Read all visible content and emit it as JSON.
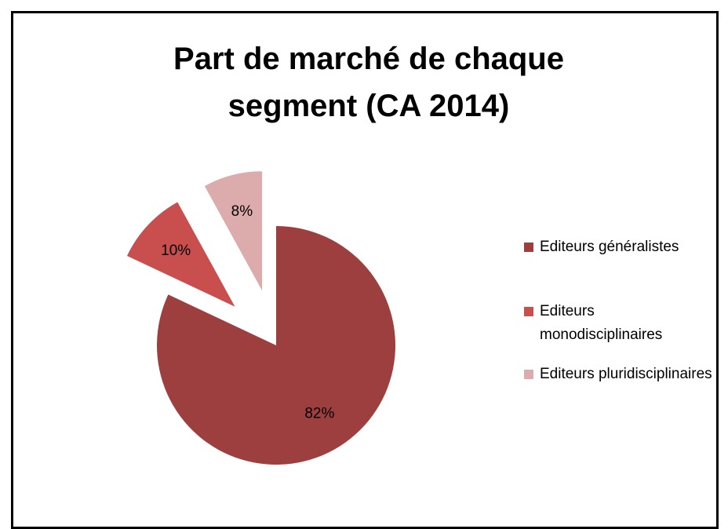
{
  "chart_data": {
    "type": "pie",
    "title": "Part de marché de chaque segment (CA 2014)",
    "categories": [
      "Editeurs généralistes",
      "Editeurs monodisciplinaires",
      "Editeurs pluridisciplinaires"
    ],
    "values": [
      82,
      10,
      8
    ],
    "value_labels": [
      "82%",
      "10%",
      "8%"
    ],
    "colors": [
      "#9e3f3f",
      "#c94f4f",
      "#dcabab"
    ],
    "legend": "right"
  }
}
